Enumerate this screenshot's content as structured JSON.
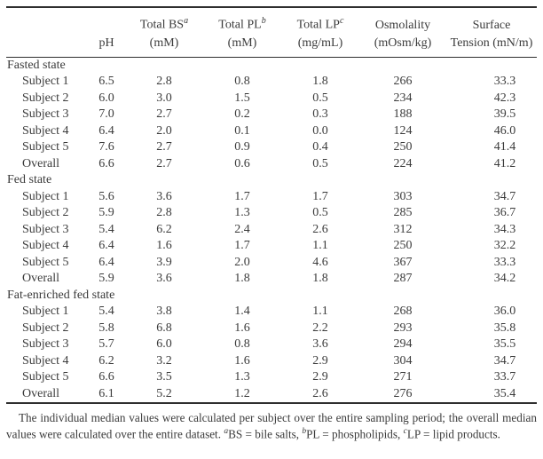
{
  "colors": {
    "background": "#ffffff",
    "text": "#3b3b3b",
    "rule": "#2f2f2f"
  },
  "table": {
    "columns": [
      {
        "line1": "",
        "line2": "pH"
      },
      {
        "line1": "Total BS",
        "sup": "a",
        "line2": "(mM)"
      },
      {
        "line1": "Total PL",
        "sup": "b",
        "line2": "(mM)"
      },
      {
        "line1": "Total LP",
        "sup": "c",
        "line2": "(mg/mL)"
      },
      {
        "line1": "Osmolality",
        "line2": "(mOsm/kg)"
      },
      {
        "line1": "Surface",
        "line2": "Tension (mN/m)"
      }
    ],
    "sections": [
      {
        "label": "Fasted state",
        "rows": [
          {
            "label": "Subject 1",
            "values": [
              "6.5",
              "2.8",
              "0.8",
              "1.8",
              "266",
              "33.3"
            ]
          },
          {
            "label": "Subject 2",
            "values": [
              "6.0",
              "3.0",
              "1.5",
              "0.5",
              "234",
              "42.3"
            ]
          },
          {
            "label": "Subject 3",
            "values": [
              "7.0",
              "2.7",
              "0.2",
              "0.3",
              "188",
              "39.5"
            ]
          },
          {
            "label": "Subject 4",
            "values": [
              "6.4",
              "2.0",
              "0.1",
              "0.0",
              "124",
              "46.0"
            ]
          },
          {
            "label": "Subject 5",
            "values": [
              "7.6",
              "2.7",
              "0.9",
              "0.4",
              "250",
              "41.4"
            ]
          },
          {
            "label": "Overall",
            "values": [
              "6.6",
              "2.7",
              "0.6",
              "0.5",
              "224",
              "41.2"
            ]
          }
        ]
      },
      {
        "label": "Fed state",
        "rows": [
          {
            "label": "Subject 1",
            "values": [
              "5.6",
              "3.6",
              "1.7",
              "1.7",
              "303",
              "34.7"
            ]
          },
          {
            "label": "Subject 2",
            "values": [
              "5.9",
              "2.8",
              "1.3",
              "0.5",
              "285",
              "36.7"
            ]
          },
          {
            "label": "Subject 3",
            "values": [
              "5.4",
              "6.2",
              "2.4",
              "2.6",
              "312",
              "34.3"
            ]
          },
          {
            "label": "Subject 4",
            "values": [
              "6.4",
              "1.6",
              "1.7",
              "1.1",
              "250",
              "32.2"
            ]
          },
          {
            "label": "Subject 5",
            "values": [
              "6.4",
              "3.9",
              "2.0",
              "4.6",
              "367",
              "33.3"
            ]
          },
          {
            "label": "Overall",
            "values": [
              "5.9",
              "3.6",
              "1.8",
              "1.8",
              "287",
              "34.2"
            ]
          }
        ]
      },
      {
        "label": "Fat-enriched fed state",
        "rows": [
          {
            "label": "Subject 1",
            "values": [
              "5.4",
              "3.8",
              "1.4",
              "1.1",
              "268",
              "36.0"
            ]
          },
          {
            "label": "Subject 2",
            "values": [
              "5.8",
              "6.8",
              "1.6",
              "2.2",
              "293",
              "35.8"
            ]
          },
          {
            "label": "Subject 3",
            "values": [
              "5.7",
              "6.0",
              "0.8",
              "3.6",
              "294",
              "35.5"
            ]
          },
          {
            "label": "Subject 4",
            "values": [
              "6.2",
              "3.2",
              "1.6",
              "2.9",
              "304",
              "34.7"
            ]
          },
          {
            "label": "Subject 5",
            "values": [
              "6.6",
              "3.5",
              "1.3",
              "2.9",
              "271",
              "33.7"
            ]
          },
          {
            "label": "Overall",
            "values": [
              "6.1",
              "5.2",
              "1.2",
              "2.6",
              "276",
              "35.4"
            ]
          }
        ]
      }
    ]
  },
  "footnote": {
    "main": "The individual median values were calculated per subject over the entire sampling period; the overall median values were calculated over the entire dataset.",
    "defs": [
      {
        "sup": "a",
        "text": "BS = bile salts, "
      },
      {
        "sup": "b",
        "text": "PL = phospholipids, "
      },
      {
        "sup": "c",
        "text": "LP = lipid products."
      }
    ]
  }
}
